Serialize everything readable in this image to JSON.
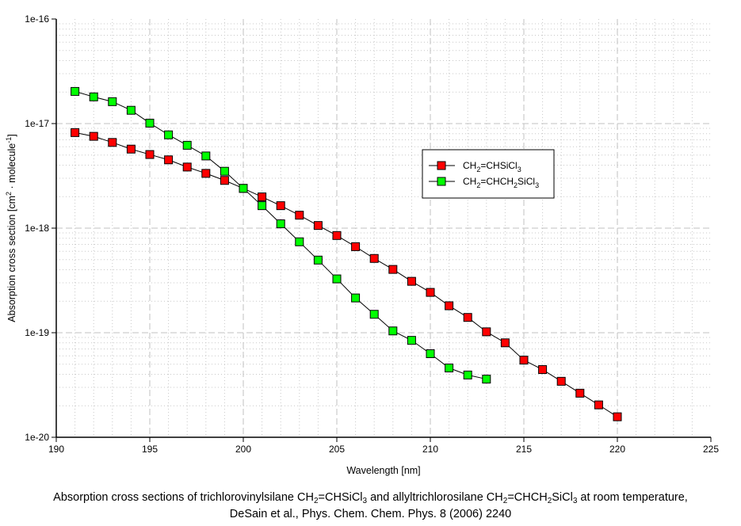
{
  "chart_data": {
    "type": "line",
    "title": "",
    "xlabel": "Wavelength [nm]",
    "ylabel": "Absorption cross section [cm² · molecule⁻¹]",
    "ylabel_parts": {
      "pre": "Absorption cross section [cm",
      "sup1": "2",
      "mid": " · molecule",
      "sup2": "-1",
      "post": "]"
    },
    "xlim": [
      190,
      225
    ],
    "ylim": [
      1e-20,
      1e-16
    ],
    "yscale": "log",
    "grid": true,
    "legend_position": "center-right",
    "x_ticks": [
      "190",
      "195",
      "200",
      "205",
      "210",
      "215",
      "220",
      "225"
    ],
    "y_ticks": [
      "1e-20",
      "1e-19",
      "1e-18",
      "1e-17",
      "1e-16"
    ],
    "series": [
      {
        "name": "CH2=CHSiCl3",
        "label_parts": [
          "CH",
          "2",
          "=CHSiCl",
          "3",
          ""
        ],
        "color": "#ff0000",
        "x": [
          191,
          192,
          193,
          194,
          195,
          196,
          197,
          198,
          199,
          200,
          201,
          202,
          203,
          204,
          205,
          206,
          207,
          208,
          209,
          210,
          211,
          212,
          213,
          214,
          215,
          216,
          217,
          218,
          219,
          220
        ],
        "values": [
          8.2e-18,
          7.55e-18,
          6.6e-18,
          5.7e-18,
          5.06e-18,
          4.5e-18,
          3.84e-18,
          3.34e-18,
          2.86e-18,
          2.4e-18,
          1.99e-18,
          1.64e-18,
          1.33e-18,
          1.06e-18,
          8.5e-19,
          6.65e-19,
          5.13e-19,
          4.03e-19,
          3.1e-19,
          2.43e-19,
          1.81e-19,
          1.4e-19,
          1.02e-19,
          8e-20,
          5.47e-20,
          4.44e-20,
          3.43e-20,
          2.64e-20,
          2.04e-20,
          1.57e-20
        ]
      },
      {
        "name": "CH2=CHCH2SiCl3",
        "label_parts": [
          "CH",
          "2",
          "=CHCH",
          "2",
          "SiCl",
          "3"
        ],
        "color": "#00ff00",
        "x": [
          191,
          192,
          193,
          194,
          195,
          196,
          197,
          198,
          199,
          200,
          201,
          202,
          203,
          204,
          205,
          206,
          207,
          208,
          209,
          210,
          211,
          212,
          213
        ],
        "values": [
          2.03e-17,
          1.8e-17,
          1.62e-17,
          1.34e-17,
          1.01e-17,
          7.8e-18,
          6.2e-18,
          4.9e-18,
          3.5e-18,
          2.4e-18,
          1.64e-18,
          1.1e-18,
          7.4e-19,
          4.95e-19,
          3.27e-19,
          2.15e-19,
          1.5e-19,
          1.04e-19,
          8.45e-20,
          6.3e-20,
          4.6e-20,
          3.94e-20,
          3.6e-20
        ]
      }
    ]
  },
  "caption": {
    "line1_parts": [
      "Absorption cross sections of trichlorovinylsilane CH",
      "2",
      "=CHSiCl",
      "3",
      " and allyltrichlorosilane CH",
      "2",
      "=CHCH",
      "2",
      "SiCl",
      "3",
      " at room temperature,"
    ],
    "line2": "DeSain et al., Phys. Chem. Chem. Phys. 8 (2006) 2240"
  }
}
